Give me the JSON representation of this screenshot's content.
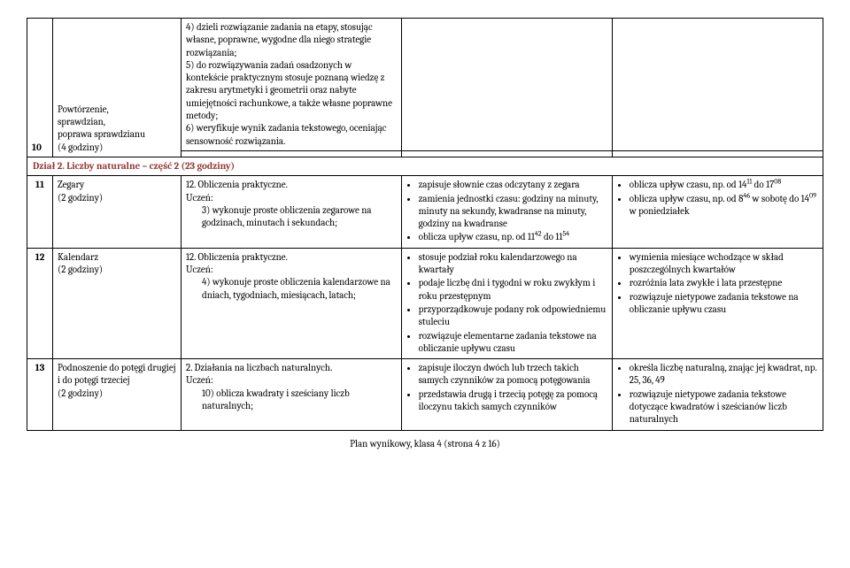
{
  "rows": {
    "r10": {
      "num": "10",
      "topic": "Powtórzenie,\nsprawdzian,\npoprawa sprawdzianu\n(4 godziny)",
      "content_items": [
        "4) dzieli rozwiązanie zadania na etapy, stosując własne, poprawne, wygodne dla niego strategie rozwiązania;",
        "5) do rozwiązywania zadań osadzonych w kontekście praktycznym stosuje poznaną wiedzę z zakresu arytmetyki i geometrii oraz nabyte umiejętności rachunkowe, a także własne poprawne metody;",
        "6) weryfikuje wynik zadania tekstowego, oceniając sensowność rozwiązania."
      ]
    },
    "section": {
      "title": "Dział 2. Liczby naturalne – część 2 (23 godziny)"
    },
    "r11": {
      "num": "11",
      "topic": "Zegary\n(2 godziny)",
      "content_title": "12. Obliczenia praktyczne.",
      "content_sub": "Uczeń:",
      "content_items": [
        "3) wykonuje proste obliczenia zegarowe na godzinach, minutach i sekundach;"
      ],
      "basic": [
        "zapisuje słownie czas odczytany z zegara",
        "zamienia jednostki czasu: godziny na minuty, minuty na sekundy, kwadranse na minuty, godziny na kwadranse",
        "oblicza upływ czasu, np. od 11<sup>42</sup> do 11<sup>54</sup>"
      ],
      "ext": [
        "oblicza upływ czasu, np. od 14<sup>11</sup> do 17<sup>08</sup>",
        "oblicza upływ czasu, np. od 8<sup>46</sup> w sobotę do 14<sup>09</sup> w poniedziałek"
      ]
    },
    "r12": {
      "num": "12",
      "topic": "Kalendarz\n(2 godziny)",
      "content_title": "12. Obliczenia praktyczne.",
      "content_sub": "Uczeń:",
      "content_items": [
        "4) wykonuje proste obliczenia kalendarzowe na dniach, tygodniach, miesiącach, latach;"
      ],
      "basic": [
        "stosuje podział roku kalendarzowego na kwartały",
        "podaje liczbę dni i tygodni w roku zwykłym i roku przestępnym",
        "przyporządkowuje podany rok odpowiedniemu stuleciu",
        "rozwiązuje elementarne zadania tekstowe na obliczanie upływu czasu"
      ],
      "ext": [
        "wymienia miesiące wchodzące w skład poszczególnych kwartałów",
        "rozróżnia lata zwykłe i lata przestępne",
        "rozwiązuje nietypowe zadania tekstowe na obliczanie upływu czasu"
      ]
    },
    "r13": {
      "num": "13",
      "topic": "Podnoszenie do potęgi drugiej i do potęgi trzeciej\n(2 godziny)",
      "content_title": "2. Działania na liczbach naturalnych.",
      "content_sub": "Uczeń:",
      "content_items": [
        "10) oblicza kwadraty i sześciany liczb naturalnych;"
      ],
      "basic": [
        "zapisuje iloczyn dwóch lub trzech takich samych czynników za pomocą potęgowania",
        "przedstawia drugą i trzecią potęgę za pomocą iloczynu takich samych czynników"
      ],
      "ext": [
        "określa liczbę naturalną, znając jej kwadrat, np. 25, 36, 49",
        "rozwiązuje nietypowe zadania tekstowe dotyczące kwadratów i sześcianów liczb naturalnych"
      ]
    }
  },
  "footer": "Plan wynikowy, klasa 4 (strona 4 z 16)"
}
